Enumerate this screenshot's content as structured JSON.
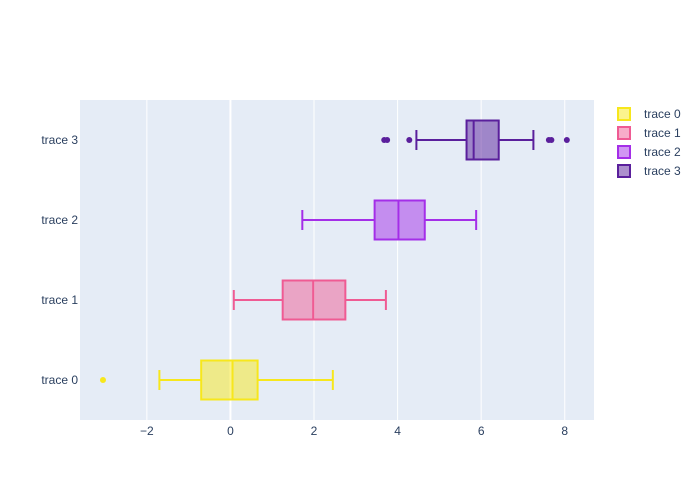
{
  "chart_data": {
    "type": "box",
    "orientation": "horizontal",
    "categories": [
      "trace 0",
      "trace 1",
      "trace 2",
      "trace 3"
    ],
    "series": [
      {
        "name": "trace 0",
        "color": "#f7e71c",
        "min": -1.7,
        "q1": -0.7,
        "median": 0.05,
        "q3": 0.65,
        "max": 2.45,
        "outliers": [
          -3.05
        ]
      },
      {
        "name": "trace 1",
        "color": "#ef5b93",
        "min": 0.08,
        "q1": 1.25,
        "median": 1.98,
        "q3": 2.75,
        "max": 3.72,
        "outliers": []
      },
      {
        "name": "trace 2",
        "color": "#a42ee8",
        "min": 1.72,
        "q1": 3.45,
        "median": 4.02,
        "q3": 4.65,
        "max": 5.88,
        "outliers": []
      },
      {
        "name": "trace 3",
        "color": "#5a1f9c",
        "min": 4.45,
        "q1": 5.65,
        "median": 5.82,
        "q3": 6.42,
        "max": 7.25,
        "outliers": [
          3.68,
          3.75,
          4.28,
          7.62,
          7.68,
          8.05
        ]
      }
    ],
    "xlim": [
      -3.6,
      8.7
    ],
    "xticks": [
      -2,
      0,
      2,
      4,
      6,
      8
    ],
    "xtick_labels": [
      "−2",
      "0",
      "2",
      "4",
      "6",
      "8"
    ],
    "grid": true,
    "legend_position": "top-right"
  }
}
